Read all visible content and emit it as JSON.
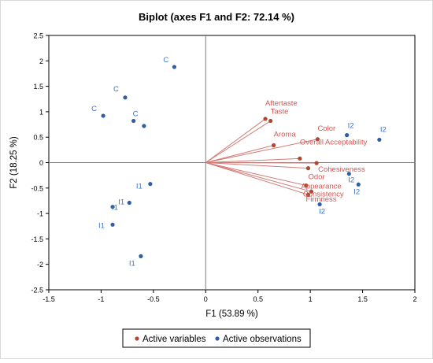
{
  "chart_data": {
    "type": "scatter",
    "title": "Biplot (axes F1 and F2: 72.14 %)",
    "xlabel": "F1 (53.89 %)",
    "ylabel": "F2 (18.25 %)",
    "xlim": [
      -1.5,
      2
    ],
    "ylim": [
      -2.5,
      2.5
    ],
    "x_ticks": [
      -1.5,
      -1,
      -0.5,
      0,
      0.5,
      1,
      1.5,
      2
    ],
    "y_ticks": [
      -2.5,
      -2,
      -1.5,
      -1,
      -0.5,
      0,
      0.5,
      1,
      1.5,
      2,
      2.5
    ],
    "x_tick_labels": [
      "-1.5",
      "-1",
      "-0.5",
      "0",
      "0.5",
      "1",
      "1.5",
      "2"
    ],
    "y_tick_labels": [
      "-2.5",
      "-2",
      "-1.5",
      "-1",
      "-0.5",
      "0",
      "0.5",
      "1",
      "1.5",
      "2",
      "2.5"
    ],
    "grid": false,
    "legend_placement": "bottom-center",
    "colors": {
      "variables": "#b0472e",
      "variable_labels": "#d9534f",
      "arrows": "#d27b76",
      "observations": "#2e5ea8",
      "observation_labels": "#3a73c4",
      "axis": "#7f7f7f",
      "frame": "#000000"
    },
    "series": [
      {
        "name": "Active variables",
        "points": [
          {
            "label": "Aftertaste",
            "x": 0.57,
            "y": 0.86
          },
          {
            "label": "Taste",
            "x": 0.62,
            "y": 0.82
          },
          {
            "label": "Aroma",
            "x": 0.65,
            "y": 0.34
          },
          {
            "label": "Color",
            "x": 1.07,
            "y": 0.46
          },
          {
            "label": "Overall Acceptability",
            "x": 0.9,
            "y": 0.08
          },
          {
            "label": "Cohesiveness",
            "x": 1.06,
            "y": -0.01
          },
          {
            "label": "Odor",
            "x": 0.98,
            "y": -0.11
          },
          {
            "label": "Consistency",
            "x": 0.96,
            "y": -0.45
          },
          {
            "label": "Appearance",
            "x": 1.01,
            "y": -0.57
          },
          {
            "label": "Firmness",
            "x": 0.98,
            "y": -0.63
          }
        ]
      },
      {
        "name": "Active observations",
        "points": [
          {
            "label": "C",
            "x": -0.3,
            "y": 1.88
          },
          {
            "label": "C",
            "x": -0.77,
            "y": 1.28
          },
          {
            "label": "C",
            "x": -0.98,
            "y": 0.92
          },
          {
            "label": "C",
            "x": -0.69,
            "y": 0.82
          },
          {
            "label": "",
            "x": -0.59,
            "y": 0.72
          },
          {
            "label": "I2",
            "x": 1.35,
            "y": 0.54
          },
          {
            "label": "I2",
            "x": 1.66,
            "y": 0.45
          },
          {
            "label": "I2",
            "x": 1.37,
            "y": -0.22
          },
          {
            "label": "I2",
            "x": 1.46,
            "y": -0.43
          },
          {
            "label": "I2",
            "x": 1.09,
            "y": -0.82
          },
          {
            "label": "I1",
            "x": -0.53,
            "y": -0.42
          },
          {
            "label": "I1",
            "x": -0.73,
            "y": -0.79
          },
          {
            "label": "I1",
            "x": -0.89,
            "y": -0.87
          },
          {
            "label": "I1",
            "x": -0.89,
            "y": -1.22
          },
          {
            "label": "I1",
            "x": -0.62,
            "y": -1.84
          }
        ]
      }
    ]
  },
  "legend": {
    "variables_label": "Active variables",
    "observations_label": "Active observations"
  }
}
